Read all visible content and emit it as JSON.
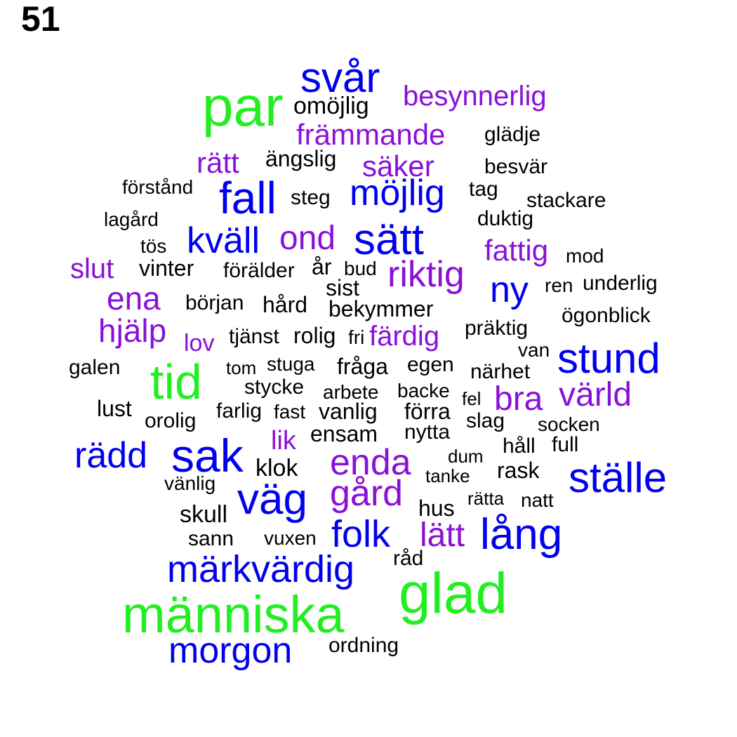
{
  "page_number": "51",
  "colors": {
    "green": "#22ee22",
    "blue": "#0000ee",
    "purple": "#8a10d8",
    "black": "#000000"
  },
  "words": [
    {
      "text": "svår",
      "color": "blue"
    },
    {
      "text": "par",
      "color": "green"
    },
    {
      "text": "besynnerlig",
      "color": "purple"
    },
    {
      "text": "omöjlig",
      "color": "black"
    },
    {
      "text": "främmande",
      "color": "purple"
    },
    {
      "text": "glädje",
      "color": "black"
    },
    {
      "text": "rätt",
      "color": "purple"
    },
    {
      "text": "ängslig",
      "color": "black"
    },
    {
      "text": "säker",
      "color": "purple"
    },
    {
      "text": "besvär",
      "color": "black"
    },
    {
      "text": "förstånd",
      "color": "black"
    },
    {
      "text": "fall",
      "color": "blue"
    },
    {
      "text": "steg",
      "color": "black"
    },
    {
      "text": "möjlig",
      "color": "blue"
    },
    {
      "text": "tag",
      "color": "black"
    },
    {
      "text": "stackare",
      "color": "black"
    },
    {
      "text": "lagård",
      "color": "black"
    },
    {
      "text": "duktig",
      "color": "black"
    },
    {
      "text": "kväll",
      "color": "blue"
    },
    {
      "text": "ond",
      "color": "purple"
    },
    {
      "text": "sätt",
      "color": "blue"
    },
    {
      "text": "tös",
      "color": "black"
    },
    {
      "text": "fattig",
      "color": "purple"
    },
    {
      "text": "mod",
      "color": "black"
    },
    {
      "text": "slut",
      "color": "purple"
    },
    {
      "text": "vinter",
      "color": "black"
    },
    {
      "text": "förälder",
      "color": "black"
    },
    {
      "text": "år",
      "color": "black"
    },
    {
      "text": "bud",
      "color": "black"
    },
    {
      "text": "riktig",
      "color": "purple"
    },
    {
      "text": "ny",
      "color": "blue"
    },
    {
      "text": "ren",
      "color": "black"
    },
    {
      "text": "underlig",
      "color": "black"
    },
    {
      "text": "sist",
      "color": "black"
    },
    {
      "text": "ena",
      "color": "purple"
    },
    {
      "text": "början",
      "color": "black"
    },
    {
      "text": "hård",
      "color": "black"
    },
    {
      "text": "bekymmer",
      "color": "black"
    },
    {
      "text": "ögonblick",
      "color": "black"
    },
    {
      "text": "hjälp",
      "color": "purple"
    },
    {
      "text": "lov",
      "color": "purple"
    },
    {
      "text": "tjänst",
      "color": "black"
    },
    {
      "text": "rolig",
      "color": "black"
    },
    {
      "text": "fri",
      "color": "black"
    },
    {
      "text": "färdig",
      "color": "purple"
    },
    {
      "text": "präktig",
      "color": "black"
    },
    {
      "text": "van",
      "color": "black"
    },
    {
      "text": "stund",
      "color": "blue"
    },
    {
      "text": "galen",
      "color": "black"
    },
    {
      "text": "tid",
      "color": "green"
    },
    {
      "text": "tom",
      "color": "black"
    },
    {
      "text": "stuga",
      "color": "black"
    },
    {
      "text": "fråga",
      "color": "black"
    },
    {
      "text": "egen",
      "color": "black"
    },
    {
      "text": "närhet",
      "color": "black"
    },
    {
      "text": "stycke",
      "color": "black"
    },
    {
      "text": "arbete",
      "color": "black"
    },
    {
      "text": "backe",
      "color": "black"
    },
    {
      "text": "fel",
      "color": "black"
    },
    {
      "text": "bra",
      "color": "purple"
    },
    {
      "text": "värld",
      "color": "purple"
    },
    {
      "text": "lust",
      "color": "black"
    },
    {
      "text": "farlig",
      "color": "black"
    },
    {
      "text": "fast",
      "color": "black"
    },
    {
      "text": "vanlig",
      "color": "black"
    },
    {
      "text": "förra",
      "color": "black"
    },
    {
      "text": "orolig",
      "color": "black"
    },
    {
      "text": "slag",
      "color": "black"
    },
    {
      "text": "socken",
      "color": "black"
    },
    {
      "text": "ensam",
      "color": "black"
    },
    {
      "text": "nytta",
      "color": "black"
    },
    {
      "text": "lik",
      "color": "purple"
    },
    {
      "text": "rädd",
      "color": "blue"
    },
    {
      "text": "sak",
      "color": "blue"
    },
    {
      "text": "dum",
      "color": "black"
    },
    {
      "text": "håll",
      "color": "black"
    },
    {
      "text": "full",
      "color": "black"
    },
    {
      "text": "enda",
      "color": "purple"
    },
    {
      "text": "klok",
      "color": "black"
    },
    {
      "text": "tanke",
      "color": "black"
    },
    {
      "text": "rask",
      "color": "black"
    },
    {
      "text": "ställe",
      "color": "blue"
    },
    {
      "text": "vänlig",
      "color": "black"
    },
    {
      "text": "väg",
      "color": "blue"
    },
    {
      "text": "gård",
      "color": "purple"
    },
    {
      "text": "rätta",
      "color": "black"
    },
    {
      "text": "natt",
      "color": "black"
    },
    {
      "text": "hus",
      "color": "black"
    },
    {
      "text": "skull",
      "color": "black"
    },
    {
      "text": "folk",
      "color": "blue"
    },
    {
      "text": "lätt",
      "color": "purple"
    },
    {
      "text": "lång",
      "color": "blue"
    },
    {
      "text": "sann",
      "color": "black"
    },
    {
      "text": "vuxen",
      "color": "black"
    },
    {
      "text": "råd",
      "color": "black"
    },
    {
      "text": "märkvärdig",
      "color": "blue"
    },
    {
      "text": "glad",
      "color": "green"
    },
    {
      "text": "människa",
      "color": "green"
    },
    {
      "text": "morgon",
      "color": "blue"
    },
    {
      "text": "ordning",
      "color": "black"
    }
  ]
}
